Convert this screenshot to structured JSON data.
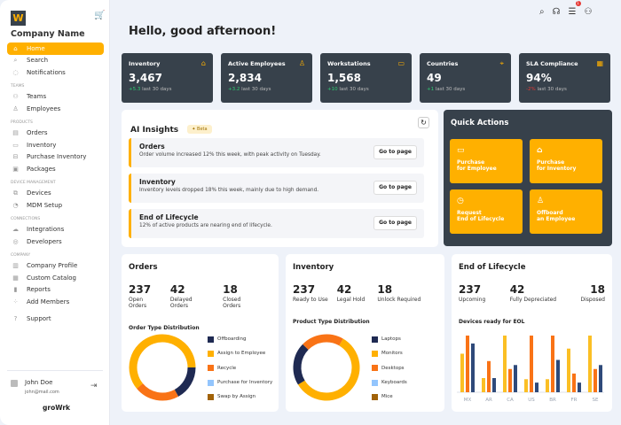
{
  "sidebar": {
    "company": "Company Name",
    "logo": "W",
    "brand": "groWrk",
    "items": [
      {
        "label": "Home",
        "icon": "home-icon",
        "active": true
      },
      {
        "label": "Search",
        "icon": "search-icon"
      },
      {
        "label": "Notifications",
        "icon": "bell-icon"
      }
    ],
    "sections": [
      {
        "title": "TEAMS",
        "items": [
          {
            "label": "Teams",
            "icon": "teams-icon"
          },
          {
            "label": "Employees",
            "icon": "user-icon"
          }
        ]
      },
      {
        "title": "PRODUCTS",
        "items": [
          {
            "label": "Orders",
            "icon": "orders-icon"
          },
          {
            "label": "Inventory",
            "icon": "monitor-icon"
          },
          {
            "label": "Purchase Inventory",
            "icon": "purchase-icon"
          },
          {
            "label": "Packages",
            "icon": "package-icon"
          }
        ]
      },
      {
        "title": "DEVICE MANAGEMENT",
        "items": [
          {
            "label": "Devices",
            "icon": "devices-icon"
          },
          {
            "label": "MDM Setup",
            "icon": "mdm-icon"
          }
        ]
      },
      {
        "title": "CONNECTIONS",
        "items": [
          {
            "label": "Integrations",
            "icon": "cloud-icon"
          },
          {
            "label": "Developers",
            "icon": "code-icon"
          }
        ]
      },
      {
        "title": "COMPANY",
        "items": [
          {
            "label": "Company Profile",
            "icon": "building-icon"
          },
          {
            "label": "Custom Catalog",
            "icon": "catalog-icon"
          },
          {
            "label": "Reports",
            "icon": "chart-icon"
          },
          {
            "label": "Add Members",
            "icon": "add-members-icon"
          }
        ]
      }
    ],
    "support": "Support",
    "user": {
      "name": "John Doe",
      "email": "john@mail.com"
    }
  },
  "header": {
    "greeting": "Hello, good afternoon!",
    "notification_count": "1"
  },
  "kpis": [
    {
      "title": "Inventory",
      "value": "3,467",
      "delta": "+5.3",
      "period": "last 30 days",
      "icon": "box-icon",
      "negative": false
    },
    {
      "title": "Active Employees",
      "value": "2,834",
      "delta": "+3.2",
      "period": "last 30 days",
      "icon": "user-icon",
      "negative": false
    },
    {
      "title": "Workstations",
      "value": "1,568",
      "delta": "+10",
      "period": "last 30 days",
      "icon": "laptop-icon",
      "negative": false
    },
    {
      "title": "Countries",
      "value": "49",
      "delta": "+1",
      "period": "last 30 days",
      "icon": "location-icon",
      "negative": false
    },
    {
      "title": "SLA Compliance",
      "value": "94%",
      "delta": "-2%",
      "period": "last 30 days",
      "icon": "calendar-icon",
      "negative": true
    }
  ],
  "ai": {
    "title": "AI Insights",
    "badge": "Beta",
    "go_label": "Go to page",
    "insights": [
      {
        "title": "Orders",
        "text": "Order volume increased 12% this week, with peak activity on Tuesday."
      },
      {
        "title": "Inventory",
        "text": "Inventory levels dropped 18% this week, mainly due to high demand."
      },
      {
        "title": "End of Lifecycle",
        "text": "12% of active products are nearing end of lifecycle."
      }
    ]
  },
  "quick_actions": {
    "title": "Quick Actions",
    "items": [
      {
        "line1": "Purchase",
        "line2": "for Employee",
        "icon": "laptop-icon"
      },
      {
        "line1": "Purchase",
        "line2": "for Inventory",
        "icon": "box-icon"
      },
      {
        "line1": "Request",
        "line2": "End of Lifecycle",
        "icon": "gauge-icon"
      },
      {
        "line1": "Offboard",
        "line2": "an Employee",
        "icon": "user-minus-icon"
      }
    ]
  },
  "orders": {
    "title": "Orders",
    "stats": [
      {
        "n": "237",
        "l": "Open Orders"
      },
      {
        "n": "42",
        "l": "Delayed Orders"
      },
      {
        "n": "18",
        "l": "Closed Orders"
      }
    ],
    "chart_title": "Order Type Distribution"
  },
  "inventory": {
    "title": "Inventory",
    "stats": [
      {
        "n": "237",
        "l": "Ready to Use"
      },
      {
        "n": "42",
        "l": "Legal Hold"
      },
      {
        "n": "18",
        "l": "Unlock Required"
      }
    ],
    "chart_title": "Product Type Distribution"
  },
  "eol": {
    "title": "End of Lifecycle",
    "stats": [
      {
        "n": "237",
        "l": "Upcoming"
      },
      {
        "n": "42",
        "l": "Fully Depreciated"
      },
      {
        "n": "18",
        "l": "Disposed"
      }
    ],
    "chart_title": "Devices ready for EOL"
  },
  "chart_data": [
    {
      "type": "pie",
      "title": "Order Type Distribution",
      "categories": [
        "Offboarding",
        "Assign to Employee",
        "Recycle",
        "Purchase for Inventory",
        "Swap by Assign"
      ],
      "values": [
        17,
        61,
        22,
        0,
        0
      ],
      "colors": [
        "#1f2a52",
        "#ffb000",
        "#f97316",
        "#93c5fd",
        "#a16207"
      ]
    },
    {
      "type": "pie",
      "title": "Product Type Distribution",
      "categories": [
        "Laptops",
        "Monitors",
        "Desktops",
        "Keyboards",
        "Mice"
      ],
      "values": [
        21,
        58,
        21,
        0,
        0
      ],
      "colors": [
        "#1f2a52",
        "#ffb000",
        "#f97316",
        "#93c5fd",
        "#a16207"
      ]
    },
    {
      "type": "bar",
      "title": "Devices ready for EOL",
      "categories": [
        "MX",
        "AR",
        "CA",
        "US",
        "BR",
        "FR",
        "SE"
      ],
      "series": [
        {
          "values": [
            68,
            25,
            100,
            23,
            23,
            77,
            100
          ],
          "color": "#fbbf24"
        },
        {
          "values": [
            100,
            55,
            41,
            100,
            100,
            33,
            41
          ],
          "color": "#f97316"
        },
        {
          "values": [
            86,
            25,
            48,
            17,
            57,
            17,
            48
          ],
          "color": "#2f4a7a"
        }
      ],
      "ylim": [
        0,
        100
      ]
    }
  ]
}
